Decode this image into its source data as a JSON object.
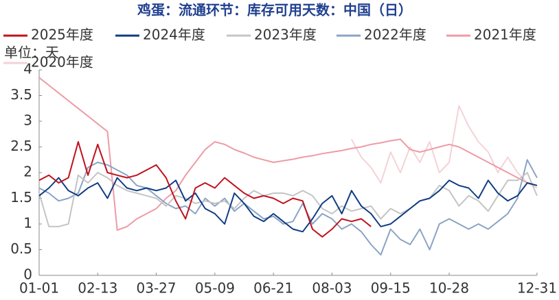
{
  "chart_data": {
    "type": "line",
    "title": "鸡蛋：流通环节：库存可用天数：中国（日）",
    "unit_label": "单位：天",
    "categories": [
      "01-01",
      null,
      null,
      null,
      null,
      null,
      "02-13",
      null,
      null,
      null,
      null,
      null,
      "03-27",
      null,
      null,
      null,
      null,
      null,
      "05-09",
      null,
      null,
      null,
      null,
      null,
      "06-21",
      null,
      null,
      null,
      null,
      null,
      "08-03",
      null,
      null,
      null,
      null,
      null,
      "09-15",
      null,
      null,
      null,
      null,
      null,
      "10-28",
      null,
      null,
      null,
      null,
      null,
      null,
      null,
      null,
      "12-31"
    ],
    "ylim": [
      0,
      4
    ],
    "yticks": [
      0,
      0.5,
      1,
      1.5,
      2,
      2.5,
      3,
      3.5,
      4
    ],
    "grid": false,
    "legend": "top",
    "series": [
      {
        "name": "2025年度",
        "color": "#c0101c",
        "values": [
          1.85,
          1.95,
          1.8,
          1.9,
          2.6,
          1.95,
          2.55,
          2.0,
          1.95,
          1.9,
          1.95,
          2.05,
          2.15,
          1.9,
          1.45,
          1.1,
          1.7,
          1.8,
          1.7,
          1.9,
          1.75,
          1.6,
          1.5,
          1.55,
          1.5,
          1.4,
          1.5,
          1.45,
          0.9,
          0.75,
          0.9,
          1.1,
          1.05,
          1.1,
          0.95,
          null,
          null,
          null,
          null,
          null,
          null,
          null,
          null,
          null,
          null,
          null,
          null,
          null,
          null,
          null,
          null,
          null
        ]
      },
      {
        "name": "2024年度",
        "color": "#0f3b82",
        "values": [
          1.55,
          1.7,
          1.9,
          1.65,
          1.55,
          1.7,
          1.8,
          1.5,
          1.9,
          1.7,
          1.65,
          1.7,
          1.65,
          1.7,
          1.85,
          1.45,
          1.6,
          1.3,
          1.2,
          1.0,
          1.6,
          1.4,
          1.15,
          1.05,
          1.2,
          1.05,
          0.9,
          0.85,
          1.1,
          1.4,
          1.55,
          1.2,
          1.65,
          1.35,
          1.2,
          0.95,
          1.0,
          1.15,
          1.3,
          1.45,
          1.5,
          1.65,
          1.85,
          1.75,
          1.7,
          1.5,
          1.85,
          1.6,
          1.45,
          1.55,
          1.8,
          1.75
        ]
      },
      {
        "name": "2023年度",
        "color": "#c4c4c4",
        "values": [
          1.6,
          0.95,
          0.95,
          1.0,
          1.95,
          1.8,
          2.0,
          1.9,
          1.75,
          1.65,
          1.6,
          1.55,
          1.5,
          1.35,
          1.55,
          1.5,
          1.4,
          1.45,
          1.4,
          1.45,
          1.3,
          1.5,
          1.65,
          1.55,
          1.6,
          1.6,
          1.55,
          1.65,
          1.55,
          1.3,
          1.2,
          1.35,
          1.25,
          1.3,
          1.35,
          1.1,
          1.3,
          1.2,
          1.3,
          1.45,
          1.5,
          1.75,
          1.65,
          1.35,
          1.55,
          1.45,
          1.25,
          1.55,
          1.85,
          1.85,
          2.0,
          1.55
        ]
      },
      {
        "name": "2022年度",
        "color": "#8aa3c4",
        "values": [
          1.7,
          1.6,
          1.45,
          1.5,
          1.6,
          2.1,
          2.2,
          2.15,
          2.05,
          1.95,
          1.75,
          1.7,
          1.55,
          1.4,
          1.3,
          1.35,
          1.2,
          1.5,
          1.35,
          1.5,
          1.25,
          1.4,
          1.25,
          1.1,
          1.15,
          1.0,
          1.05,
          1.4,
          1.0,
          1.2,
          1.1,
          0.9,
          1.0,
          0.85,
          0.6,
          0.4,
          0.9,
          0.7,
          0.6,
          0.9,
          0.5,
          1.0,
          1.1,
          1.0,
          0.9,
          1.0,
          0.9,
          1.05,
          1.2,
          1.5,
          2.25,
          1.9
        ]
      },
      {
        "name": "2021年度",
        "color": "#ee9aa4",
        "values": [
          3.85,
          3.7,
          3.55,
          3.4,
          3.25,
          3.1,
          2.95,
          2.8,
          0.88,
          0.95,
          1.1,
          1.2,
          1.3,
          1.5,
          1.65,
          1.95,
          2.2,
          2.45,
          2.6,
          2.55,
          2.45,
          2.38,
          2.3,
          2.25,
          2.2,
          2.23,
          2.26,
          2.3,
          2.33,
          2.37,
          2.4,
          2.43,
          2.47,
          2.5,
          2.55,
          2.58,
          2.62,
          2.65,
          2.45,
          2.4,
          2.45,
          2.5,
          2.55,
          2.5,
          2.4,
          2.3,
          2.2,
          2.1,
          2.0,
          1.9,
          1.8,
          1.75
        ]
      },
      {
        "name": "2020年度",
        "color": "#f4d2d6",
        "values": [
          null,
          null,
          null,
          null,
          null,
          null,
          null,
          null,
          null,
          null,
          null,
          null,
          null,
          null,
          null,
          null,
          null,
          null,
          null,
          null,
          null,
          null,
          null,
          null,
          null,
          null,
          null,
          null,
          null,
          null,
          null,
          null,
          2.65,
          2.3,
          2.1,
          1.8,
          2.4,
          2.0,
          2.5,
          2.2,
          2.6,
          2.0,
          2.2,
          3.3,
          2.9,
          2.6,
          2.4,
          2.0,
          2.3,
          2.0,
          1.8,
          1.7
        ]
      }
    ]
  }
}
